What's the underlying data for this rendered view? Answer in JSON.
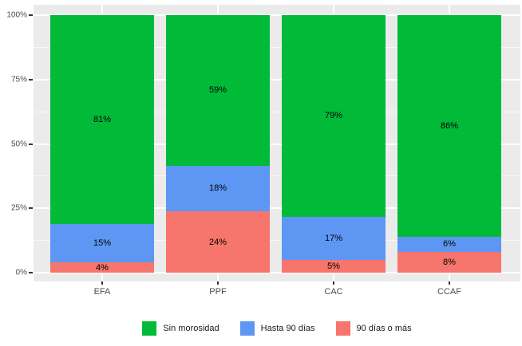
{
  "chart_data": {
    "type": "bar",
    "variant": "stacked-percent-column",
    "title": "",
    "xlabel": "",
    "ylabel": "",
    "categories": [
      "EFA",
      "PPF",
      "CAC",
      "CCAF"
    ],
    "series": [
      {
        "name": "Sin morosidad",
        "color": "#00BA38",
        "values": [
          81,
          59,
          79,
          86
        ],
        "labels": [
          "81%",
          "59%",
          "79%",
          "86%"
        ]
      },
      {
        "name": "Hasta 90 días",
        "color": "#5E97F3",
        "values": [
          15,
          18,
          17,
          6
        ],
        "labels": [
          "15%",
          "18%",
          "17%",
          "6%"
        ]
      },
      {
        "name": "90 días o más",
        "color": "#F6756C",
        "values": [
          4,
          24,
          5,
          8
        ],
        "labels": [
          "4%",
          "24%",
          "5%",
          "8%"
        ]
      }
    ],
    "stack_order_bottom_to_top": [
      "90 días o más",
      "Hasta 90 días",
      "Sin morosidad"
    ],
    "y_axis": {
      "range": [
        0,
        100
      ],
      "tick_values": [
        0,
        25,
        50,
        75,
        100
      ],
      "tick_labels": [
        "0%",
        "25%",
        "50%",
        "75%",
        "100%"
      ],
      "minor_gridline_values": [
        12.5,
        37.5,
        62.5,
        87.5
      ]
    },
    "legend": {
      "position": "bottom",
      "entries": [
        "Sin morosidad",
        "Hasta 90 días",
        "90 días o más"
      ]
    },
    "style": {
      "panel_background": "#EBEBEB",
      "gridline_color": "#FFFFFF",
      "axis_text_color": "#4D4D4D",
      "bar_label_color": "#000000",
      "figure_background": "#FFFFFF",
      "grid": "on"
    }
  }
}
